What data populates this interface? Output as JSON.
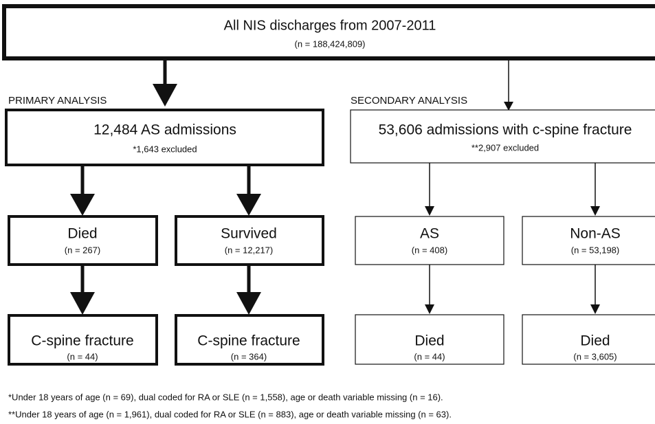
{
  "top": {
    "title": "All NIS discharges from 2007-2011",
    "subtitle": "(n = 188,424,809)"
  },
  "sections": [
    "PRIMARY ANALYSIS",
    "SECONDARY ANALYSIS"
  ],
  "nodes": [
    {
      "label": "12,484 AS admissions",
      "sub": "*1,643 excluded"
    },
    {
      "label": "53,606 admissions with c-spine fracture",
      "sub": "**2,907 excluded"
    },
    {
      "label": "Died",
      "sub": "(n = 267)"
    },
    {
      "label": "Survived",
      "sub": "(n = 12,217)"
    },
    {
      "label": "AS",
      "sub": "(n = 408)"
    },
    {
      "label": "Non-AS",
      "sub": "(n = 53,198)"
    },
    {
      "label": "C-spine fracture",
      "sub": "(n = 44)"
    },
    {
      "label": "C-spine fracture",
      "sub": "(n = 364)"
    },
    {
      "label": "Died",
      "sub": "(n = 44)"
    },
    {
      "label": "Died",
      "sub": "(n = 3,605)"
    }
  ],
  "footnotes": [
    "*Under 18 years of age (n = 69), dual coded for RA or SLE (n = 1,558), age or death variable missing (n = 16).",
    "**Under 18 years of age (n = 1,961), dual coded for RA or SLE (n = 883), age or death variable missing (n = 63)."
  ]
}
